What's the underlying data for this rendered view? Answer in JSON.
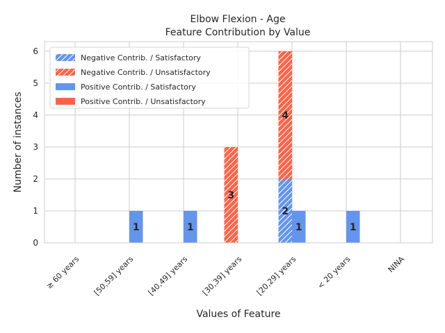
{
  "chart_data": {
    "type": "bar",
    "title": "Elbow Flexion - Age",
    "subtitle": "Feature Contribution by Value",
    "xlabel": "Values of Feature",
    "ylabel": "Number of instances",
    "ylim": [
      0,
      6.3
    ],
    "yticks": [
      0,
      1,
      2,
      3,
      4,
      5,
      6
    ],
    "grid": true,
    "legend_position": "top-left",
    "categories": [
      "≥ 60 years",
      "[50,59] years",
      "[40,49] years",
      "[30,39] years",
      "[20,29] years",
      "< 20 years",
      "NINA"
    ],
    "series": [
      {
        "name": "Negative Contrib. / Satisfactory",
        "group": "negative",
        "hatch": true,
        "color": "#6495ed",
        "values": [
          0,
          0,
          0,
          0,
          2,
          0,
          0
        ]
      },
      {
        "name": "Negative Contrib. / Unsatisfactory",
        "group": "negative",
        "hatch": true,
        "color": "#ff6347",
        "values": [
          0,
          0,
          0,
          3,
          4,
          0,
          0
        ]
      },
      {
        "name": "Positive Contrib. / Satisfactory",
        "group": "positive",
        "hatch": false,
        "color": "#6495ed",
        "values": [
          0,
          1,
          1,
          0,
          1,
          1,
          0
        ]
      },
      {
        "name": "Positive Contrib. / Unsatisfactory",
        "group": "positive",
        "hatch": false,
        "color": "#ff6347",
        "values": [
          0,
          0,
          0,
          0,
          0,
          0,
          0
        ]
      }
    ],
    "data_labels": [
      {
        "category": "[50,59] years",
        "group": "positive",
        "text": "1"
      },
      {
        "category": "[40,49] years",
        "group": "positive",
        "text": "1"
      },
      {
        "category": "[30,39] years",
        "group": "negative",
        "text": "3"
      },
      {
        "category": "[20,29] years",
        "group": "negative",
        "text": "2"
      },
      {
        "category": "[20,29] years",
        "group": "negative",
        "text": "4"
      },
      {
        "category": "[20,29] years",
        "group": "positive",
        "text": "1"
      },
      {
        "category": "< 20 years",
        "group": "positive",
        "text": "1"
      }
    ]
  }
}
